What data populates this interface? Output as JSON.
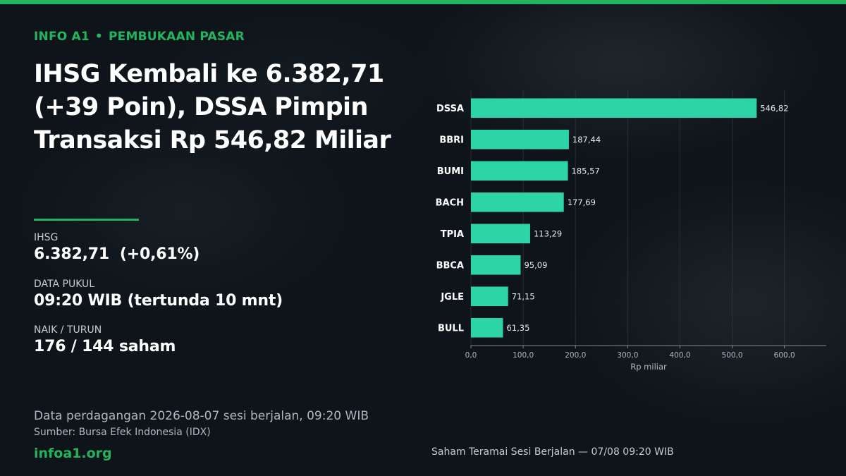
{
  "theme": {
    "accent": "#22b45e",
    "bar": "#2dd4a7",
    "background": "#0e1419"
  },
  "header": {
    "kicker_source": "INFO A1",
    "kicker_separator": "•",
    "kicker_section": "PEMBUKAAN PASAR",
    "headline_lines": [
      "IHSG Kembali ke 6.382,71",
      "(+39 Poin), DSSA Pimpin",
      "Transaksi Rp 546,82 Miliar"
    ]
  },
  "stats": [
    {
      "label": "IHSG",
      "value": "6.382,71  (+0,61%)"
    },
    {
      "label": "DATA PUKUL",
      "value": "09:20 WIB (tertunda 10 mnt)"
    },
    {
      "label": "NAIK / TURUN",
      "value": "176 / 144 saham"
    }
  ],
  "footer": {
    "note": "Data perdagangan 2026-08-07 sesi berjalan, 09:20 WIB",
    "source": "Sumber: Bursa Efek Indonesia (IDX)",
    "brand": "infoa1.org",
    "caption": "Saham Teramai Sesi Berjalan — 07/08 09:20 WIB"
  },
  "chart_data": {
    "type": "bar",
    "orientation": "horizontal",
    "categories": [
      "DSSA",
      "BBRI",
      "BUMI",
      "BACH",
      "TPIA",
      "BBCA",
      "JGLE",
      "BULL"
    ],
    "values": [
      546.82,
      187.44,
      185.57,
      177.69,
      113.29,
      95.09,
      71.15,
      61.35
    ],
    "value_labels": [
      "546,82",
      "187,44",
      "185,57",
      "177,69",
      "113,29",
      "95,09",
      "71,15",
      "61,35"
    ],
    "xlabel": "Rp miliar",
    "xlim": [
      0,
      680
    ],
    "xticks": [
      0,
      100,
      200,
      300,
      400,
      500,
      600
    ],
    "xtick_labels": [
      "0,0",
      "100,0",
      "200,0",
      "300,0",
      "400,0",
      "500,0",
      "600,0"
    ],
    "grid": true
  }
}
